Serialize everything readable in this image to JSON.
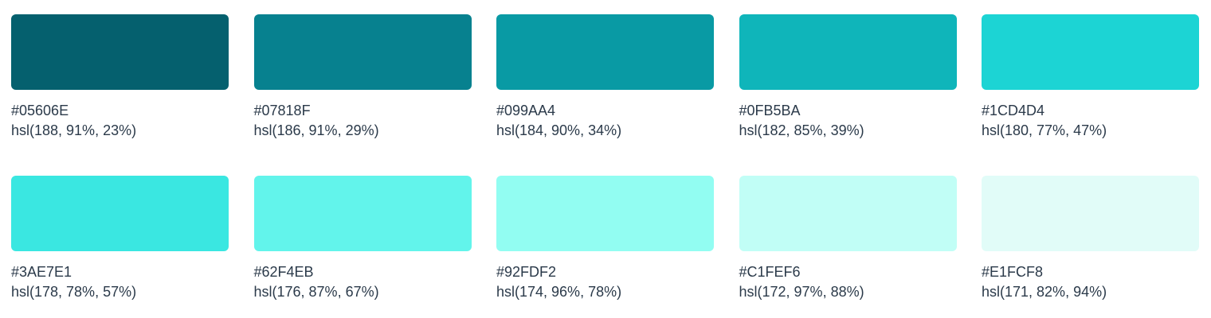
{
  "swatches": [
    {
      "hex": "#05606E",
      "hsl": "hsl(188, 91%, 23%)",
      "color": "#05606E"
    },
    {
      "hex": "#07818F",
      "hsl": "hsl(186, 91%, 29%)",
      "color": "#07818F"
    },
    {
      "hex": "#099AA4",
      "hsl": "hsl(184, 90%, 34%)",
      "color": "#099AA4"
    },
    {
      "hex": "#0FB5BA",
      "hsl": "hsl(182, 85%, 39%)",
      "color": "#0FB5BA"
    },
    {
      "hex": "#1CD4D4",
      "hsl": "hsl(180, 77%, 47%)",
      "color": "#1CD4D4"
    },
    {
      "hex": "#3AE7E1",
      "hsl": "hsl(178, 78%, 57%)",
      "color": "#3AE7E1"
    },
    {
      "hex": "#62F4EB",
      "hsl": "hsl(176, 87%, 67%)",
      "color": "#62F4EB"
    },
    {
      "hex": "#92FDF2",
      "hsl": "hsl(174, 96%, 78%)",
      "color": "#92FDF2"
    },
    {
      "hex": "#C1FEF6",
      "hsl": "hsl(172, 97%, 88%)",
      "color": "#C1FEF6"
    },
    {
      "hex": "#E1FCF8",
      "hsl": "hsl(171, 82%, 94%)",
      "color": "#E1FCF8"
    }
  ]
}
